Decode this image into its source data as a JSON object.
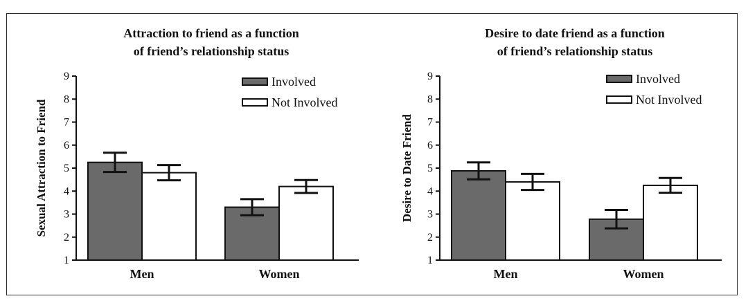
{
  "chart_data": [
    {
      "type": "bar",
      "title_lines": [
        "Attraction to friend as a function",
        "of friend’s relationship status"
      ],
      "ylabel": "Sexual Attraction to Friend",
      "xlabel": "",
      "categories": [
        "Men",
        "Women"
      ],
      "ylim": [
        1,
        9
      ],
      "yticks": [
        "1",
        "2",
        "3",
        "4",
        "5",
        "6",
        "7",
        "8",
        "9"
      ],
      "series": [
        {
          "name": "Involved",
          "values": [
            5.25,
            3.3
          ],
          "errors": [
            0.42,
            0.35
          ],
          "color": "#6a6a6a"
        },
        {
          "name": "Not Involved",
          "values": [
            4.8,
            4.2
          ],
          "errors": [
            0.33,
            0.28
          ],
          "color": "#ffffff"
        }
      ],
      "legend": "top-right",
      "grid": false
    },
    {
      "type": "bar",
      "title_lines": [
        "Desire to date friend as a function",
        "of friend’s relationship status"
      ],
      "ylabel": "Desire to Date Friend",
      "xlabel": "",
      "categories": [
        "Men",
        "Women"
      ],
      "ylim": [
        1,
        9
      ],
      "yticks": [
        "1",
        "2",
        "3",
        "4",
        "5",
        "6",
        "7",
        "8",
        "9"
      ],
      "series": [
        {
          "name": "Involved",
          "values": [
            4.88,
            2.78
          ],
          "errors": [
            0.37,
            0.4
          ],
          "color": "#6a6a6a"
        },
        {
          "name": "Not Involved",
          "values": [
            4.4,
            4.25
          ],
          "errors": [
            0.35,
            0.32
          ],
          "color": "#ffffff"
        }
      ],
      "legend": "top-right",
      "grid": false
    }
  ]
}
